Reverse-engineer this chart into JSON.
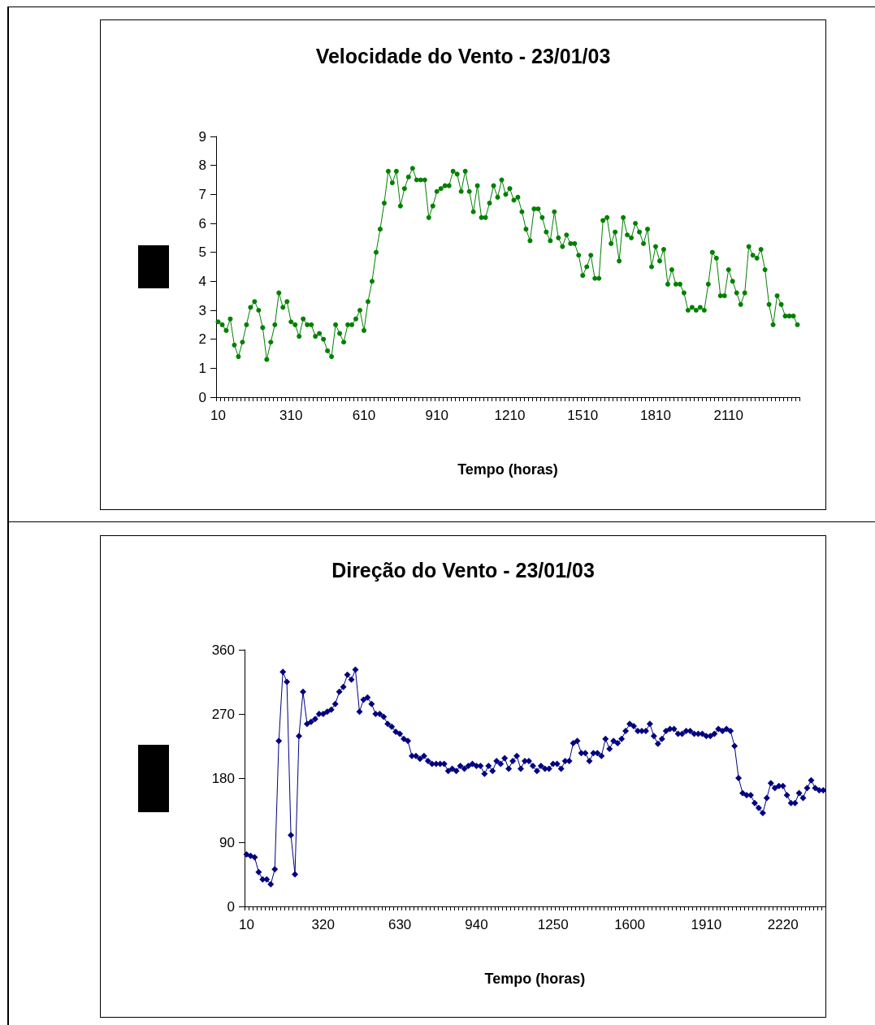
{
  "chart_data": [
    {
      "type": "line",
      "title": "Velocidade do Vento - 23/01/03",
      "xlabel": "Tempo (horas)",
      "categories": [
        "10",
        null,
        null,
        null,
        null,
        null,
        null,
        null,
        null,
        null,
        null,
        null,
        null,
        null,
        null,
        null,
        null,
        null,
        "310",
        null,
        null,
        null,
        null,
        null,
        null,
        null,
        null,
        null,
        null,
        null,
        null,
        null,
        null,
        null,
        null,
        null,
        "610",
        null,
        null,
        null,
        null,
        null,
        null,
        null,
        null,
        null,
        null,
        null,
        null,
        null,
        null,
        null,
        null,
        null,
        "910",
        null,
        null,
        null,
        null,
        null,
        null,
        null,
        null,
        null,
        null,
        null,
        null,
        null,
        null,
        null,
        null,
        null,
        "1210",
        null,
        null,
        null,
        null,
        null,
        null,
        null,
        null,
        null,
        null,
        null,
        null,
        null,
        null,
        null,
        null,
        null,
        "1510",
        null,
        null,
        null,
        null,
        null,
        null,
        null,
        null,
        null,
        null,
        null,
        null,
        null,
        null,
        null,
        null,
        null,
        "1810",
        null,
        null,
        null,
        null,
        null,
        null,
        null,
        null,
        null,
        null,
        null,
        null,
        null,
        null,
        null,
        null,
        null,
        "2110",
        null,
        null,
        null,
        null,
        null,
        null,
        null,
        null,
        null,
        null,
        null,
        null,
        null,
        null,
        null,
        null,
        null
      ],
      "series": [
        {
          "color": "#008000",
          "values": [
            2.6,
            2.5,
            2.3,
            2.7,
            1.8,
            1.4,
            1.9,
            2.5,
            3.1,
            3.3,
            3.0,
            2.4,
            1.3,
            1.9,
            2.5,
            3.6,
            3.1,
            3.3,
            2.6,
            2.5,
            2.1,
            2.7,
            2.5,
            2.5,
            2.1,
            2.2,
            2.0,
            1.6,
            1.4,
            2.5,
            2.2,
            1.9,
            2.5,
            2.5,
            2.7,
            3.0,
            2.3,
            3.3,
            4.0,
            5.0,
            5.8,
            6.7,
            7.8,
            7.4,
            7.8,
            6.6,
            7.2,
            7.6,
            7.9,
            7.5,
            7.5,
            7.5,
            6.2,
            6.6,
            7.1,
            7.2,
            7.3,
            7.3,
            7.8,
            7.7,
            7.1,
            7.8,
            7.1,
            6.4,
            7.3,
            6.2,
            6.2,
            6.7,
            7.3,
            6.9,
            7.5,
            7.0,
            7.2,
            6.8,
            6.9,
            6.4,
            5.8,
            5.4,
            6.5,
            6.5,
            6.2,
            5.7,
            5.4,
            6.4,
            5.5,
            5.2,
            5.6,
            5.3,
            5.3,
            4.9,
            4.2,
            4.5,
            4.9,
            4.1,
            4.1,
            6.1,
            6.2,
            5.3,
            5.7,
            4.7,
            6.2,
            5.6,
            5.5,
            6.0,
            5.7,
            5.3,
            5.8,
            4.5,
            5.2,
            4.7,
            5.1,
            3.9,
            4.4,
            3.9,
            3.9,
            3.6,
            3.0,
            3.1,
            3.0,
            3.1,
            3.0,
            3.9,
            5.0,
            4.8,
            3.5,
            3.5,
            4.4,
            4.0,
            3.6,
            3.2,
            3.6,
            5.2,
            4.9,
            4.8,
            5.1,
            4.4,
            3.2,
            2.5,
            3.5,
            3.2,
            2.8,
            2.8,
            2.8,
            2.5
          ]
        }
      ],
      "ylim": [
        0,
        9
      ],
      "yticks": [
        0,
        1,
        2,
        3,
        4,
        5,
        6,
        7,
        8,
        9
      ],
      "marker": "circle",
      "line_style": "solid"
    },
    {
      "type": "line",
      "title": "Direção do Vento - 23/01/03",
      "xlabel": "Tempo (horas)",
      "categories": [
        "10",
        null,
        null,
        null,
        null,
        null,
        null,
        null,
        null,
        null,
        null,
        null,
        null,
        null,
        null,
        null,
        null,
        null,
        null,
        "320",
        null,
        null,
        null,
        null,
        null,
        null,
        null,
        null,
        null,
        null,
        null,
        null,
        null,
        null,
        null,
        null,
        null,
        null,
        "630",
        null,
        null,
        null,
        null,
        null,
        null,
        null,
        null,
        null,
        null,
        null,
        null,
        null,
        null,
        null,
        null,
        null,
        null,
        "940",
        null,
        null,
        null,
        null,
        null,
        null,
        null,
        null,
        null,
        null,
        null,
        null,
        null,
        null,
        null,
        null,
        null,
        null,
        "1250",
        null,
        null,
        null,
        null,
        null,
        null,
        null,
        null,
        null,
        null,
        null,
        null,
        null,
        null,
        null,
        null,
        null,
        null,
        "1600",
        null,
        null,
        null,
        null,
        null,
        null,
        null,
        null,
        null,
        null,
        null,
        null,
        null,
        null,
        null,
        null,
        null,
        null,
        "1910",
        null,
        null,
        null,
        null,
        null,
        null,
        null,
        null,
        null,
        null,
        null,
        null,
        null,
        null,
        null,
        null,
        null,
        null,
        "2220",
        null,
        null,
        null,
        null,
        null,
        null,
        null,
        null,
        null,
        null
      ],
      "series": [
        {
          "color": "#000080",
          "values": [
            73,
            71,
            69,
            48,
            38,
            38,
            31,
            52,
            232,
            329,
            315,
            100,
            45,
            239,
            301,
            256,
            259,
            263,
            270,
            270,
            273,
            276,
            284,
            301,
            308,
            325,
            318,
            332,
            273,
            290,
            293,
            284,
            270,
            270,
            266,
            256,
            252,
            245,
            242,
            235,
            232,
            211,
            211,
            207,
            211,
            204,
            200,
            200,
            200,
            200,
            190,
            193,
            190,
            197,
            193,
            197,
            200,
            197,
            197,
            186,
            197,
            190,
            204,
            200,
            208,
            193,
            204,
            211,
            193,
            204,
            204,
            197,
            190,
            197,
            193,
            193,
            200,
            200,
            193,
            204,
            204,
            229,
            232,
            215,
            215,
            204,
            215,
            215,
            211,
            235,
            221,
            232,
            229,
            235,
            246,
            256,
            253,
            246,
            246,
            246,
            256,
            239,
            228,
            235,
            246,
            249,
            249,
            242,
            242,
            246,
            246,
            242,
            242,
            242,
            239,
            239,
            242,
            249,
            246,
            249,
            246,
            225,
            180,
            159,
            156,
            156,
            145,
            138,
            131,
            152,
            173,
            166,
            169,
            169,
            156,
            145,
            145,
            159,
            152,
            166,
            177,
            166,
            163,
            163
          ]
        }
      ],
      "ylim": [
        0,
        360
      ],
      "yticks": [
        0,
        90,
        180,
        270,
        360
      ],
      "marker": "diamond",
      "line_style": "solid"
    }
  ]
}
